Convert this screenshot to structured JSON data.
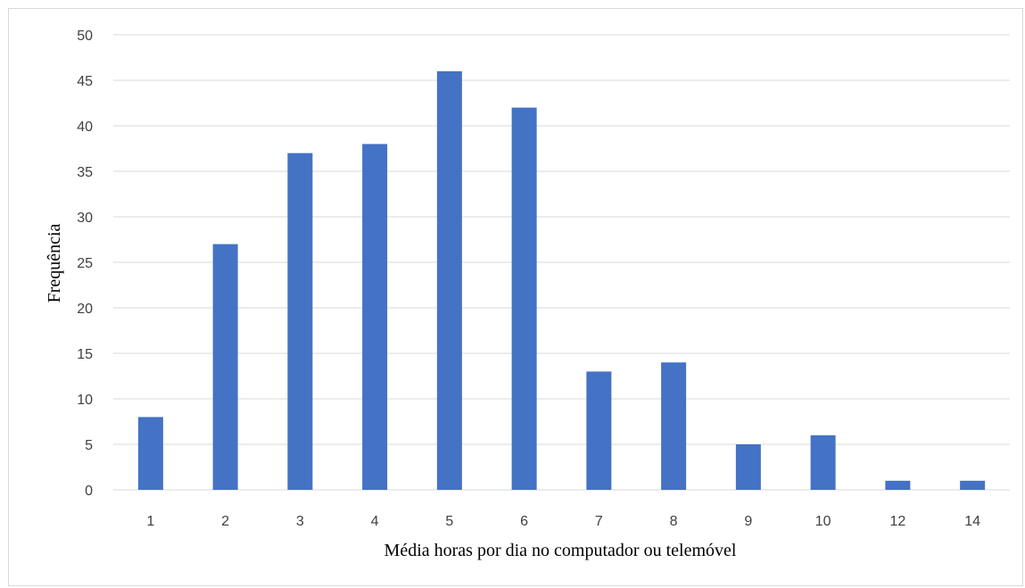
{
  "chart_data": {
    "type": "bar",
    "title": "",
    "xlabel": "Média horas por dia no computador ou telemóvel",
    "ylabel": "Frequência",
    "categories": [
      "1",
      "2",
      "3",
      "4",
      "5",
      "6",
      "7",
      "8",
      "9",
      "10",
      "12",
      "14"
    ],
    "series": [
      {
        "values": [
          8,
          27,
          37,
          38,
          46,
          42,
          13,
          14,
          5,
          6,
          1,
          1
        ]
      }
    ],
    "ylim": [
      0,
      50
    ],
    "yticks": [
      0,
      5,
      10,
      15,
      20,
      25,
      30,
      35,
      40,
      45,
      50
    ],
    "grid": true,
    "legend": "none",
    "colors": {
      "bar": "#4472c4",
      "grid": "#d9d9d9",
      "tick_text": "#404040",
      "frame": "#d9d9d9"
    }
  }
}
